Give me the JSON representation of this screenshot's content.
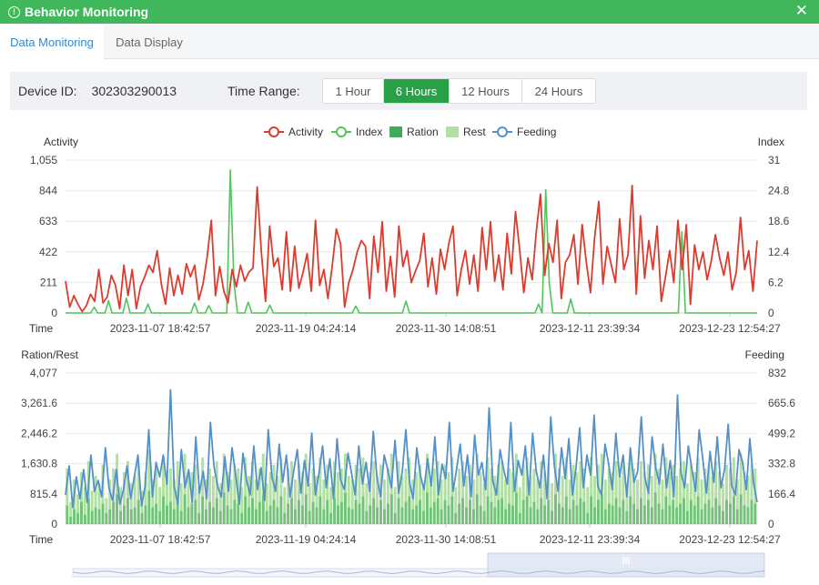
{
  "window": {
    "title": "Behavior Monitoring",
    "close_icon": "close-icon",
    "title_icon": "alert-icon"
  },
  "tabs": [
    {
      "label": "Data Monitoring",
      "active": true
    },
    {
      "label": "Data Display",
      "active": false
    }
  ],
  "filter": {
    "device_label": "Device ID:",
    "device_id": "302303290013",
    "time_range_label": "Time Range:",
    "ranges": [
      {
        "label": "1 Hour",
        "selected": false
      },
      {
        "label": "6 Hours",
        "selected": true
      },
      {
        "label": "12 Hours",
        "selected": false
      },
      {
        "label": "24 Hours",
        "selected": false
      }
    ]
  },
  "colors": {
    "activity": "#dd3b2e",
    "index": "#52c45c",
    "ration": "#3faa5a",
    "rest": "#b2e0a2",
    "feeding": "#5391c8",
    "selected_range": "#27a048",
    "title_bar": "#3fb75a"
  },
  "legend": [
    {
      "name": "Activity",
      "kind": "line",
      "color": "#dd3b2e"
    },
    {
      "name": "Index",
      "kind": "line",
      "color": "#52c45c"
    },
    {
      "name": "Ration",
      "kind": "bar",
      "color": "#3faa5a"
    },
    {
      "name": "Rest",
      "kind": "bar",
      "color": "#b2e0a2"
    },
    {
      "name": "Feeding",
      "kind": "line",
      "color": "#5391c8"
    }
  ],
  "chart_data": [
    {
      "type": "line",
      "ylabel": "Activity",
      "y2label": "Index",
      "xlabel": "Time",
      "ylim": [
        0,
        1055
      ],
      "y2lim": [
        0,
        31
      ],
      "yticks": [
        "0",
        "211",
        "422",
        "633",
        "844",
        "1,055"
      ],
      "y2ticks": [
        "0",
        "6.2",
        "12.4",
        "18.6",
        "24.8",
        "31"
      ],
      "xticks": [
        "2023-11-07 18:42:57",
        "2023-11-19 04:24:14",
        "2023-11-30 14:08:51",
        "2023-12-11 23:39:34",
        "2023-12-23 12:54:27"
      ],
      "series": [
        {
          "name": "Activity",
          "axis": "left",
          "values": [
            220,
            40,
            120,
            60,
            10,
            50,
            130,
            80,
            300,
            70,
            110,
            260,
            190,
            30,
            330,
            120,
            300,
            30,
            180,
            250,
            330,
            280,
            430,
            200,
            60,
            310,
            120,
            260,
            130,
            340,
            250,
            330,
            90,
            200,
            390,
            640,
            120,
            320,
            150,
            70,
            300,
            180,
            330,
            220,
            280,
            310,
            870,
            420,
            80,
            600,
            320,
            380,
            160,
            560,
            150,
            460,
            170,
            280,
            410,
            150,
            640,
            190,
            300,
            100,
            320,
            580,
            480,
            40,
            210,
            300,
            420,
            500,
            460,
            100,
            530,
            280,
            630,
            150,
            390,
            110,
            600,
            320,
            430,
            210,
            290,
            360,
            550,
            180,
            380,
            130,
            440,
            300,
            480,
            600,
            120,
            300,
            430,
            200,
            400,
            150,
            590,
            300,
            630,
            220,
            400,
            160,
            550,
            270,
            700,
            440,
            140,
            380,
            230,
            560,
            820,
            260,
            480,
            350,
            640,
            100,
            350,
            400,
            540,
            200,
            610,
            350,
            140,
            520,
            770,
            200,
            460,
            330,
            210,
            650,
            300,
            400,
            880,
            130,
            670,
            240,
            500,
            300,
            600,
            80,
            250,
            430,
            210,
            640,
            300,
            610,
            60,
            470,
            300,
            420,
            230,
            360,
            540,
            380,
            260,
            420,
            160,
            280,
            660,
            300,
            430,
            150,
            500
          ]
        },
        {
          "name": "Index",
          "axis": "right",
          "values": [
            0,
            0,
            0,
            0,
            0,
            0,
            0,
            0,
            1.2,
            0,
            0,
            0,
            2.5,
            0,
            0,
            0,
            0,
            3.0,
            0,
            0,
            0,
            0,
            0,
            1.8,
            0,
            0,
            0,
            0,
            0,
            0,
            0,
            0,
            0,
            0,
            0,
            0,
            2.0,
            0,
            0,
            0,
            1.5,
            0,
            0,
            0,
            0,
            0,
            29.0,
            6.0,
            0,
            0,
            0,
            2.2,
            0,
            0,
            0,
            0,
            0,
            1.6,
            0,
            0,
            0,
            0,
            0,
            0,
            0,
            0,
            0,
            0,
            0,
            0,
            0,
            0,
            0,
            0,
            0,
            0,
            0,
            0,
            0,
            0,
            0,
            1.4,
            0,
            0,
            0,
            0,
            0,
            0,
            0,
            0,
            0,
            0,
            0,
            0,
            0,
            2.4,
            0,
            0,
            0,
            0,
            0,
            0,
            0,
            0,
            0,
            0,
            0,
            0,
            0,
            0,
            0,
            0,
            0,
            0,
            0,
            0,
            0,
            0,
            0,
            0,
            0,
            0,
            0,
            0,
            0,
            0,
            0,
            0,
            0,
            0,
            0,
            0,
            1.8,
            0,
            25.0,
            6.0,
            0,
            0,
            0,
            0,
            0,
            2.8,
            0,
            0,
            0,
            0,
            0,
            0,
            0,
            0,
            0,
            0,
            0,
            0,
            0,
            0,
            0,
            0,
            0,
            0,
            0,
            0,
            0,
            0,
            0,
            0,
            0,
            0,
            0,
            0,
            0,
            0,
            16.5,
            0,
            0,
            0,
            0,
            0,
            0,
            0,
            0,
            0,
            0,
            0,
            0,
            0,
            0,
            0,
            0,
            0,
            0,
            0,
            0,
            0
          ]
        }
      ]
    },
    {
      "type": "bar+line",
      "ylabel": "Ration/Rest",
      "y2label": "Feeding",
      "xlabel": "Time",
      "ylim": [
        0,
        4077
      ],
      "y2lim": [
        0,
        832
      ],
      "yticks": [
        "0",
        "815.4",
        "1,630.8",
        "2,446.2",
        "3,261.6",
        "4,077"
      ],
      "y2ticks": [
        "0",
        "166.4",
        "332.8",
        "499.2",
        "665.6",
        "832"
      ],
      "xticks": [
        "2023-11-07 18:42:57",
        "2023-11-19 04:24:14",
        "2023-11-30 14:08:51",
        "2023-12-11 23:39:34",
        "2023-12-23 12:54:27"
      ],
      "series": [
        {
          "name": "Rest",
          "type": "bar",
          "axis": "left",
          "values": [
            1500,
            600,
            1200,
            800,
            1400,
            1000,
            1700,
            900,
            1300,
            1100,
            1600,
            700,
            1200,
            1500,
            1900,
            1000,
            1400,
            1700,
            1100,
            1300,
            1600,
            900,
            1400,
            2000,
            1200,
            1500,
            1000,
            1800,
            1300,
            1500,
            1200,
            1700,
            1100,
            1900,
            1300,
            1400,
            1600,
            1000,
            1800,
            1200,
            1500,
            1300,
            1700,
            1100,
            1900,
            1400,
            1200,
            1600,
            1500,
            1000,
            1800,
            1300,
            1700,
            1200,
            1500,
            1900,
            1100,
            1400,
            1600,
            1300,
            1800,
            1000,
            1500,
            1700,
            1200,
            1600,
            1400,
            1900,
            1100,
            1500,
            1300,
            1800,
            1200,
            1600,
            1000,
            1700,
            1400,
            1500,
            1900,
            1300,
            1200,
            1600,
            1500,
            1800,
            1100,
            1400,
            1700,
            1300,
            1600,
            1200,
            1500,
            1900,
            1000,
            1700,
            1300,
            1500,
            1800,
            1200,
            1400,
            1600,
            1100,
            1900,
            1300,
            1500,
            1700,
            1200,
            1600,
            1400,
            1800,
            1000,
            1500,
            1700,
            1300,
            1600,
            1200,
            1900,
            1400,
            1100,
            1800,
            1500,
            1300,
            1600,
            1700,
            1200,
            1500,
            1400,
            1900,
            1000,
            1600,
            1800,
            1300,
            1500,
            1200,
            1700,
            1400,
            1600,
            1100,
            1900,
            1500,
            1300,
            1800,
            1200,
            1600,
            1400,
            1700,
            1500,
            1000,
            1800,
            1300,
            1600,
            1900,
            1200,
            1500,
            1400,
            1700,
            1300,
            1600,
            1100,
            1800,
            1500,
            1200,
            1700,
            1400,
            1600,
            1300,
            1900,
            1500,
            1200,
            1800,
            1400,
            1600,
            1300,
            1500,
            1700,
            1100,
            1600,
            1400,
            1800,
            1200,
            1500,
            1600,
            1300,
            1700,
            1400,
            1100,
            1600,
            1500,
            1800,
            1200,
            1900,
            1400,
            1300,
            1600,
            1500
          ]
        },
        {
          "name": "Ration",
          "type": "bar",
          "axis": "left",
          "values": [
            500,
            200,
            400,
            300,
            600,
            250,
            700,
            350,
            450,
            400,
            550,
            300,
            400,
            600,
            800,
            350,
            500,
            700,
            400,
            450,
            650,
            300,
            500,
            900,
            450,
            550,
            350,
            750,
            500,
            600,
            400,
            700,
            350,
            800,
            450,
            550,
            650,
            300,
            750,
            400,
            600,
            450,
            700,
            350,
            850,
            500,
            400,
            650,
            550,
            300,
            750,
            450,
            700,
            400,
            600,
            800,
            350,
            500,
            650,
            450,
            750,
            300,
            550,
            700,
            400,
            650,
            500,
            800,
            350,
            600,
            450,
            750,
            400,
            650,
            300,
            700,
            500,
            600,
            850,
            450,
            400,
            650,
            550,
            750,
            350,
            500,
            700,
            450,
            650,
            400,
            550,
            800,
            300,
            700,
            450,
            600,
            750,
            400,
            500,
            650,
            350,
            850,
            450,
            600,
            700,
            400,
            650,
            500,
            750,
            300,
            550,
            700,
            450,
            650,
            400,
            800,
            500,
            350,
            750,
            600,
            450,
            650,
            700,
            400,
            550,
            500,
            850,
            300,
            650,
            750,
            450,
            600,
            400,
            700,
            500,
            650,
            350,
            800,
            550,
            450,
            750,
            400,
            650,
            500,
            700,
            600,
            300,
            750,
            450,
            650,
            800,
            400,
            550,
            500,
            700,
            450,
            650,
            350,
            750,
            550,
            400,
            700,
            500,
            650,
            450,
            850,
            550,
            400,
            750,
            500,
            650,
            450,
            550,
            700,
            350,
            650,
            500,
            750,
            400,
            550,
            650,
            450,
            700,
            500,
            350,
            650,
            550,
            750,
            400,
            800,
            500,
            450,
            650,
            550
          ]
        },
        {
          "name": "Feeding",
          "type": "line",
          "axis": "right",
          "values": [
            160,
            320,
            90,
            260,
            140,
            300,
            120,
            380,
            180,
            240,
            150,
            420,
            200,
            130,
            300,
            110,
            190,
            320,
            140,
            260,
            380,
            100,
            210,
            520,
            150,
            340,
            260,
            380,
            220,
            740,
            210,
            110,
            410,
            200,
            300,
            120,
            480,
            170,
            290,
            140,
            560,
            320,
            210,
            150,
            370,
            180,
            420,
            270,
            110,
            390,
            240,
            160,
            430,
            190,
            310,
            130,
            520,
            260,
            180,
            440,
            230,
            380,
            150,
            290,
            410,
            170,
            350,
            210,
            500,
            160,
            280,
            430,
            200,
            360,
            140,
            470,
            240,
            190,
            390,
            280,
            160,
            430,
            220,
            340,
            180,
            510,
            260,
            150,
            380,
            300,
            200,
            460,
            170,
            290,
            520,
            230,
            140,
            420,
            270,
            190,
            360,
            210,
            480,
            160,
            330,
            250,
            560,
            180,
            300,
            440,
            210,
            380,
            150,
            490,
            270,
            340,
            190,
            640,
            240,
            160,
            410,
            300,
            220,
            560,
            180,
            350,
            270,
            430,
            160,
            500,
            290,
            200,
            380,
            140,
            590,
            320,
            180,
            420,
            250,
            470,
            160,
            310,
            530,
            200,
            380,
            270,
            600,
            210,
            160,
            440,
            330,
            190,
            500,
            260,
            380,
            150,
            420,
            230,
            290,
            590,
            260,
            170,
            480,
            310,
            220,
            440,
            200,
            350,
            150,
            710,
            280,
            200,
            430,
            300,
            180,
            520,
            360,
            170,
            400,
            230,
            480,
            200,
            300,
            550,
            210,
            160,
            410,
            340,
            190,
            470,
            230,
            120
          ]
        }
      ]
    }
  ],
  "scrollbar": {
    "grip": "III"
  }
}
